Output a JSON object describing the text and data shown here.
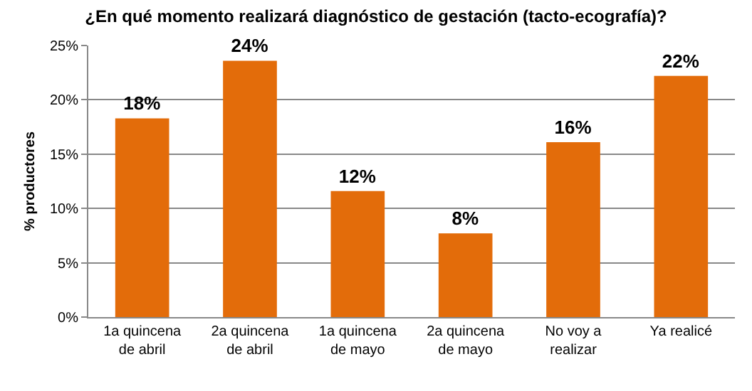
{
  "chart_data": {
    "type": "bar",
    "title": "¿En qué momento realizará diagnóstico de gestación (tacto-ecografía)?",
    "ylabel": "% productores",
    "categories": [
      "1a quincena de abril",
      "2a quincena de abril",
      "1a quincena de mayo",
      "2a quincena de mayo",
      "No voy a realizar",
      "Ya realicé"
    ],
    "values": [
      18.3,
      23.6,
      11.6,
      7.7,
      16.1,
      22.2
    ],
    "value_labels": [
      "18%",
      "24%",
      "12%",
      "8%",
      "16%",
      "22%"
    ],
    "color": "#e36c0a",
    "ylim": [
      0,
      25
    ],
    "yticks": [
      {
        "value": 0,
        "label": "0%"
      },
      {
        "value": 5,
        "label": "5%"
      },
      {
        "value": 10,
        "label": "10%"
      },
      {
        "value": 15,
        "label": "15%"
      },
      {
        "value": 20,
        "label": "20%"
      },
      {
        "value": 25,
        "label": "25%"
      }
    ],
    "grid": "y"
  }
}
